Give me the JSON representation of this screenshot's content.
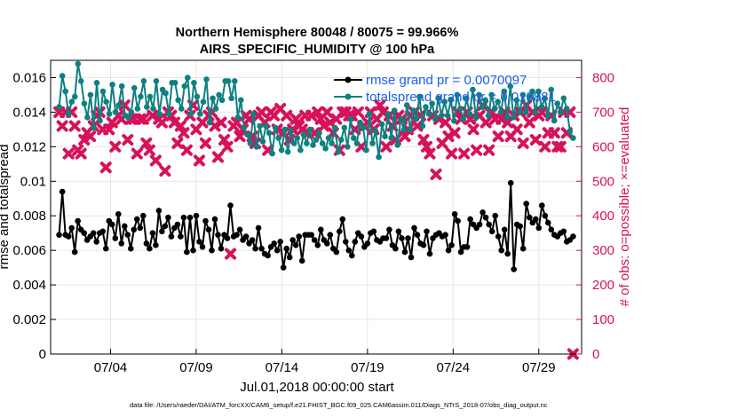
{
  "chart_data": {
    "type": "line",
    "title": "Northern Hemisphere 80048 / 80075 = 99.966%",
    "subtitle": "AIRS_SPECIFIC_HUMIDITY @ 100 hPa",
    "xlabel": "Jul.01,2018 00:00:00 start",
    "ylabel": "rmse and totalspread",
    "ylabel_right": "# of obs: o=possible; ×=evaluated",
    "footer": "data file: /Users/raeder/DAI/ATM_forcXX/CAM6_setup/f.e21.FHIST_BGC.f09_025.CAM6assim.011/Diags_NTrS_2018-07/obs_diag_output.nc",
    "xlim": [
      0.5,
      31.5
    ],
    "ylim": [
      0,
      0.017
    ],
    "ylim_right": [
      0,
      850
    ],
    "x_ticks": [
      4,
      9,
      14,
      19,
      24,
      29
    ],
    "x_tick_labels": [
      "07/04",
      "07/09",
      "07/14",
      "07/19",
      "07/24",
      "07/29"
    ],
    "y_ticks": [
      0,
      0.002,
      0.004,
      0.006,
      0.008,
      0.01,
      0.012,
      0.014,
      0.016
    ],
    "y_tick_labels": [
      "0",
      "0.002",
      "0.004",
      "0.006",
      "0.008",
      "0.01",
      "0.012",
      "0.014",
      "0.016"
    ],
    "y_ticks_right": [
      0,
      100,
      200,
      300,
      400,
      500,
      600,
      700,
      800
    ],
    "y_tick_labels_right": [
      "0",
      "100",
      "200",
      "300",
      "400",
      "500",
      "600",
      "700",
      "800"
    ],
    "legend_position": "top-right",
    "legend": [
      "rmse grand pr = 0.0070097",
      "totalspread grand pr = 0.013881"
    ],
    "colors": {
      "rmse": "#000000",
      "spread": "#0e8080",
      "obs": "#d6125a",
      "grid": "#e6e6e6",
      "legend_text": "#1a5ef0"
    },
    "series": [
      {
        "name": "rmse",
        "axis": "left",
        "values": [
          0.0069,
          0.0094,
          0.0069,
          0.0068,
          0.0073,
          0.0059,
          0.0077,
          0.0072,
          0.007,
          0.0066,
          0.0068,
          0.007,
          0.0065,
          0.007,
          0.0071,
          0.0061,
          0.0077,
          0.0075,
          0.0067,
          0.0081,
          0.0064,
          0.0074,
          0.0069,
          0.0061,
          0.0072,
          0.0078,
          0.0073,
          0.008,
          0.0064,
          0.0061,
          0.007,
          0.0063,
          0.0083,
          0.0071,
          0.0074,
          0.0079,
          0.0068,
          0.0073,
          0.0075,
          0.0068,
          0.0079,
          0.0059,
          0.0079,
          0.006,
          0.008,
          0.0065,
          0.0062,
          0.0077,
          0.0072,
          0.006,
          0.0078,
          0.0069,
          0.0061,
          0.0069,
          0.0067,
          0.0086,
          0.0068,
          0.0069,
          0.0072,
          0.0066,
          0.0068,
          0.0064,
          0.0066,
          0.0061,
          0.0073,
          0.0061,
          0.0058,
          0.0057,
          0.0062,
          0.0064,
          0.006,
          0.0065,
          0.005,
          0.0061,
          0.0056,
          0.0066,
          0.0063,
          0.0068,
          0.0054,
          0.0069,
          0.0069,
          0.0069,
          0.0066,
          0.0063,
          0.0072,
          0.0066,
          0.0064,
          0.0069,
          0.0061,
          0.0059,
          0.0071,
          0.0078,
          0.0065,
          0.006,
          0.0057,
          0.0065,
          0.007,
          0.0068,
          0.0062,
          0.0064,
          0.007,
          0.0071,
          0.0066,
          0.0065,
          0.0067,
          0.0067,
          0.0072,
          0.0063,
          0.0061,
          0.0071,
          0.0067,
          0.0059,
          0.0067,
          0.0056,
          0.0073,
          0.0069,
          0.0064,
          0.0063,
          0.0071,
          0.0058,
          0.0067,
          0.0069,
          0.007,
          0.0068,
          0.0069,
          0.006,
          0.0063,
          0.0081,
          0.0077,
          0.0059,
          0.0062,
          0.0062,
          0.0078,
          0.0075,
          0.0073,
          0.0075,
          0.0082,
          0.0079,
          0.0075,
          0.0071,
          0.008,
          0.0068,
          0.006,
          0.0072,
          0.0058,
          0.0099,
          0.0049,
          0.0075,
          0.0074,
          0.0061,
          0.0087,
          0.0079,
          0.0076,
          0.0078,
          0.0073,
          0.0086,
          0.008,
          0.0076,
          0.0072,
          0.0069,
          0.0068,
          0.007,
          0.0071,
          0.0065,
          0.0066,
          0.0068
        ]
      },
      {
        "name": "totalspread",
        "axis": "left",
        "values": [
          0.0143,
          0.0161,
          0.0152,
          0.0139,
          0.0146,
          0.0149,
          0.0168,
          0.0158,
          0.0145,
          0.0137,
          0.015,
          0.0131,
          0.0157,
          0.0135,
          0.0152,
          0.0146,
          0.0139,
          0.0156,
          0.014,
          0.0144,
          0.0155,
          0.0138,
          0.0137,
          0.014,
          0.0154,
          0.0142,
          0.0149,
          0.0158,
          0.0143,
          0.0149,
          0.0142,
          0.0158,
          0.0139,
          0.0153,
          0.0151,
          0.0139,
          0.0157,
          0.0157,
          0.0147,
          0.0142,
          0.0155,
          0.016,
          0.0139,
          0.0157,
          0.0149,
          0.0139,
          0.0146,
          0.0159,
          0.0134,
          0.0148,
          0.0142,
          0.015,
          0.0147,
          0.0158,
          0.0158,
          0.0148,
          0.0158,
          0.0137,
          0.0147,
          0.0131,
          0.0127,
          0.0122,
          0.0139,
          0.012,
          0.0132,
          0.0123,
          0.0132,
          0.0128,
          0.0116,
          0.0131,
          0.0125,
          0.0118,
          0.013,
          0.0117,
          0.0129,
          0.0122,
          0.0125,
          0.0118,
          0.0127,
          0.0122,
          0.013,
          0.0121,
          0.0124,
          0.0128,
          0.0122,
          0.0119,
          0.0125,
          0.0122,
          0.0131,
          0.0117,
          0.0124,
          0.0131,
          0.012,
          0.0136,
          0.0125,
          0.0122,
          0.0134,
          0.0131,
          0.0118,
          0.0139,
          0.0122,
          0.0129,
          0.0114,
          0.0133,
          0.0126,
          0.0139,
          0.0125,
          0.0141,
          0.0121,
          0.0136,
          0.013,
          0.0144,
          0.013,
          0.0141,
          0.0136,
          0.0149,
          0.0132,
          0.0143,
          0.0139,
          0.0145,
          0.0136,
          0.0148,
          0.0138,
          0.0146,
          0.0138,
          0.0147,
          0.0135,
          0.015,
          0.0142,
          0.0136,
          0.0148,
          0.0139,
          0.0153,
          0.0137,
          0.015,
          0.0143,
          0.0147,
          0.0138,
          0.015,
          0.0142,
          0.0146,
          0.014,
          0.0152,
          0.0137,
          0.0155,
          0.0137,
          0.0147,
          0.014,
          0.015,
          0.014,
          0.0149,
          0.0152,
          0.014,
          0.0152,
          0.0143,
          0.0148,
          0.0138,
          0.0153,
          0.0135,
          0.0145,
          0.014,
          0.0148,
          0.0142,
          0.0129,
          0.0125
        ]
      },
      {
        "name": "obs",
        "axis": "right",
        "values": [
          700,
          660,
          700,
          580,
          700,
          660,
          590,
          580,
          620,
          640,
          630,
          660,
          690,
          700,
          650,
          540,
          650,
          670,
          600,
          690,
          680,
          720,
          620,
          680,
          680,
          580,
          680,
          680,
          610,
          590,
          690,
          560,
          680,
          670,
          530,
          700,
          690,
          670,
          610,
          660,
          640,
          590,
          690,
          720,
          650,
          560,
          670,
          610,
          690,
          700,
          660,
          570,
          670,
          620,
          600,
          290,
          660,
          670,
          630,
          650,
          690,
          680,
          630,
          610,
          690,
          700,
          670,
          590,
          700,
          690,
          650,
          710,
          640,
          690,
          620,
          650,
          680,
          660,
          650,
          690,
          640,
          690,
          640,
          700,
          680,
          660,
          700,
          670,
          640,
          680,
          590,
          700,
          700,
          690,
          690,
          650,
          700,
          600,
          660,
          670,
          700,
          650,
          680,
          720,
          700,
          600,
          690,
          660,
          620,
          690,
          680,
          630,
          650,
          690,
          700,
          660,
          690,
          620,
          600,
          580,
          690,
          520,
          680,
          610,
          670,
          630,
          580,
          640,
          700,
          680,
          580,
          700,
          680,
          650,
          590,
          690,
          720,
          670,
          590,
          700,
          680,
          630,
          680,
          700,
          670,
          630,
          690,
          650,
          700,
          610,
          720,
          670,
          700,
          620,
          690,
          700,
          600,
          640,
          690,
          640,
          600,
          600,
          700,
          640,
          700,
          0
        ]
      }
    ]
  }
}
